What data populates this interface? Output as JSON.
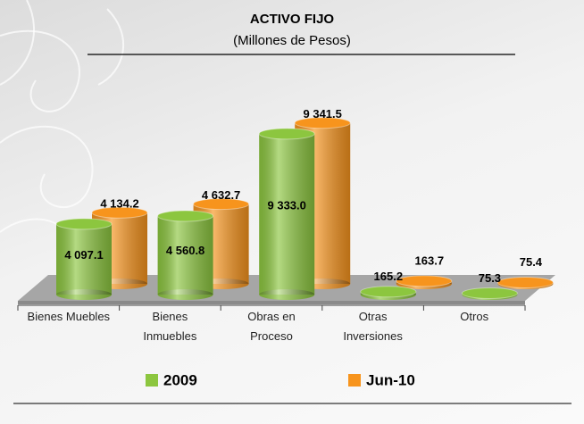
{
  "chart_data": {
    "type": "bar3d",
    "title": "ACTIVO FIJO",
    "subtitle": "(Millones de Pesos)",
    "categories": [
      "Bienes Muebles",
      "Bienes Inmuebles",
      "Obras en Proceso",
      "Otras Inversiones",
      "Otros"
    ],
    "series": [
      {
        "name": "2009",
        "color": "#8cc63f",
        "values": [
          4097.1,
          4560.8,
          9333.0,
          165.2,
          75.3
        ],
        "value_labels": [
          "4 097.1",
          "4 560.8",
          "9 333.0",
          "165.2",
          "75.3"
        ]
      },
      {
        "name": "Jun-10",
        "color": "#f7941d",
        "values": [
          4134.2,
          4632.7,
          9341.5,
          163.7,
          75.4
        ],
        "value_labels": [
          "4 134.2",
          "4 632.7",
          "9 341.5",
          "163.7",
          "75.4"
        ]
      }
    ],
    "legend": "bottom"
  }
}
